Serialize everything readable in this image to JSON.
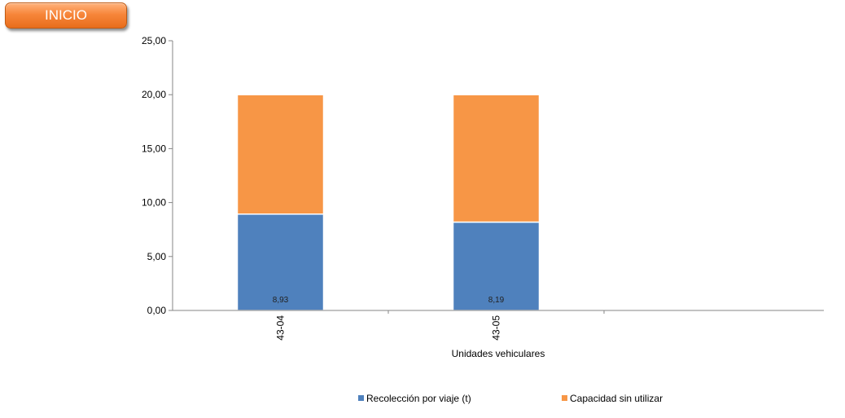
{
  "inicio_button": {
    "label": "INICIO"
  },
  "chart_data": {
    "type": "bar",
    "stacked": true,
    "categories": [
      "43-04",
      "43-05"
    ],
    "series": [
      {
        "name": "Recolección por viaje (t)",
        "color": "#4f81bd",
        "values": [
          8.93,
          8.19
        ],
        "labels": [
          "8,93",
          "8,19"
        ]
      },
      {
        "name": "Capacidad sin utilizar",
        "color": "#f79646",
        "values": [
          11.07,
          11.81
        ]
      }
    ],
    "yticks": [
      "0,00",
      "5,00",
      "10,00",
      "15,00",
      "20,00",
      "25,00"
    ],
    "ylim": [
      0,
      25
    ],
    "xlabel": "Unidades vehiculares",
    "ylabel": "",
    "title": "",
    "grid": false,
    "legend_position": "bottom"
  }
}
